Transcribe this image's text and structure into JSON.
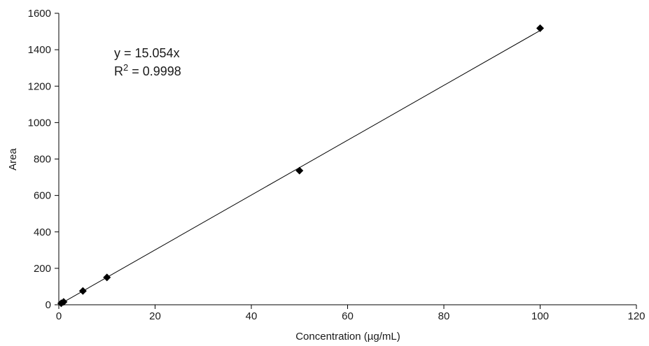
{
  "chart_data": {
    "type": "scatter",
    "xlabel": "Concentration (µg/mL)",
    "ylabel": "Area",
    "xlim": [
      0,
      120
    ],
    "ylim": [
      0,
      1600
    ],
    "x_ticks": [
      0,
      20,
      40,
      60,
      80,
      100,
      120
    ],
    "y_ticks": [
      0,
      200,
      400,
      600,
      800,
      1000,
      1200,
      1400,
      1600
    ],
    "x_tick_labels": [
      "0",
      "20",
      "40",
      "60",
      "80",
      "100",
      "120"
    ],
    "y_tick_labels": [
      "0",
      "200",
      "400",
      "600",
      "800",
      "1000",
      "1200",
      "1400",
      "1600"
    ],
    "grid": false,
    "series": [
      {
        "marker": "diamond",
        "color": "#000000",
        "x": [
          0.5,
          1,
          5,
          10,
          50,
          100
        ],
        "y": [
          8,
          16,
          76,
          150,
          736,
          1518
        ]
      }
    ],
    "trendline": {
      "type": "linear",
      "slope": 15.054,
      "intercept": 0,
      "color": "#000000"
    },
    "annotation": {
      "equation": "y = 15.054x",
      "r2_prefix": "R",
      "r2_sup": "2",
      "r2_value": " = 0.9998"
    }
  }
}
